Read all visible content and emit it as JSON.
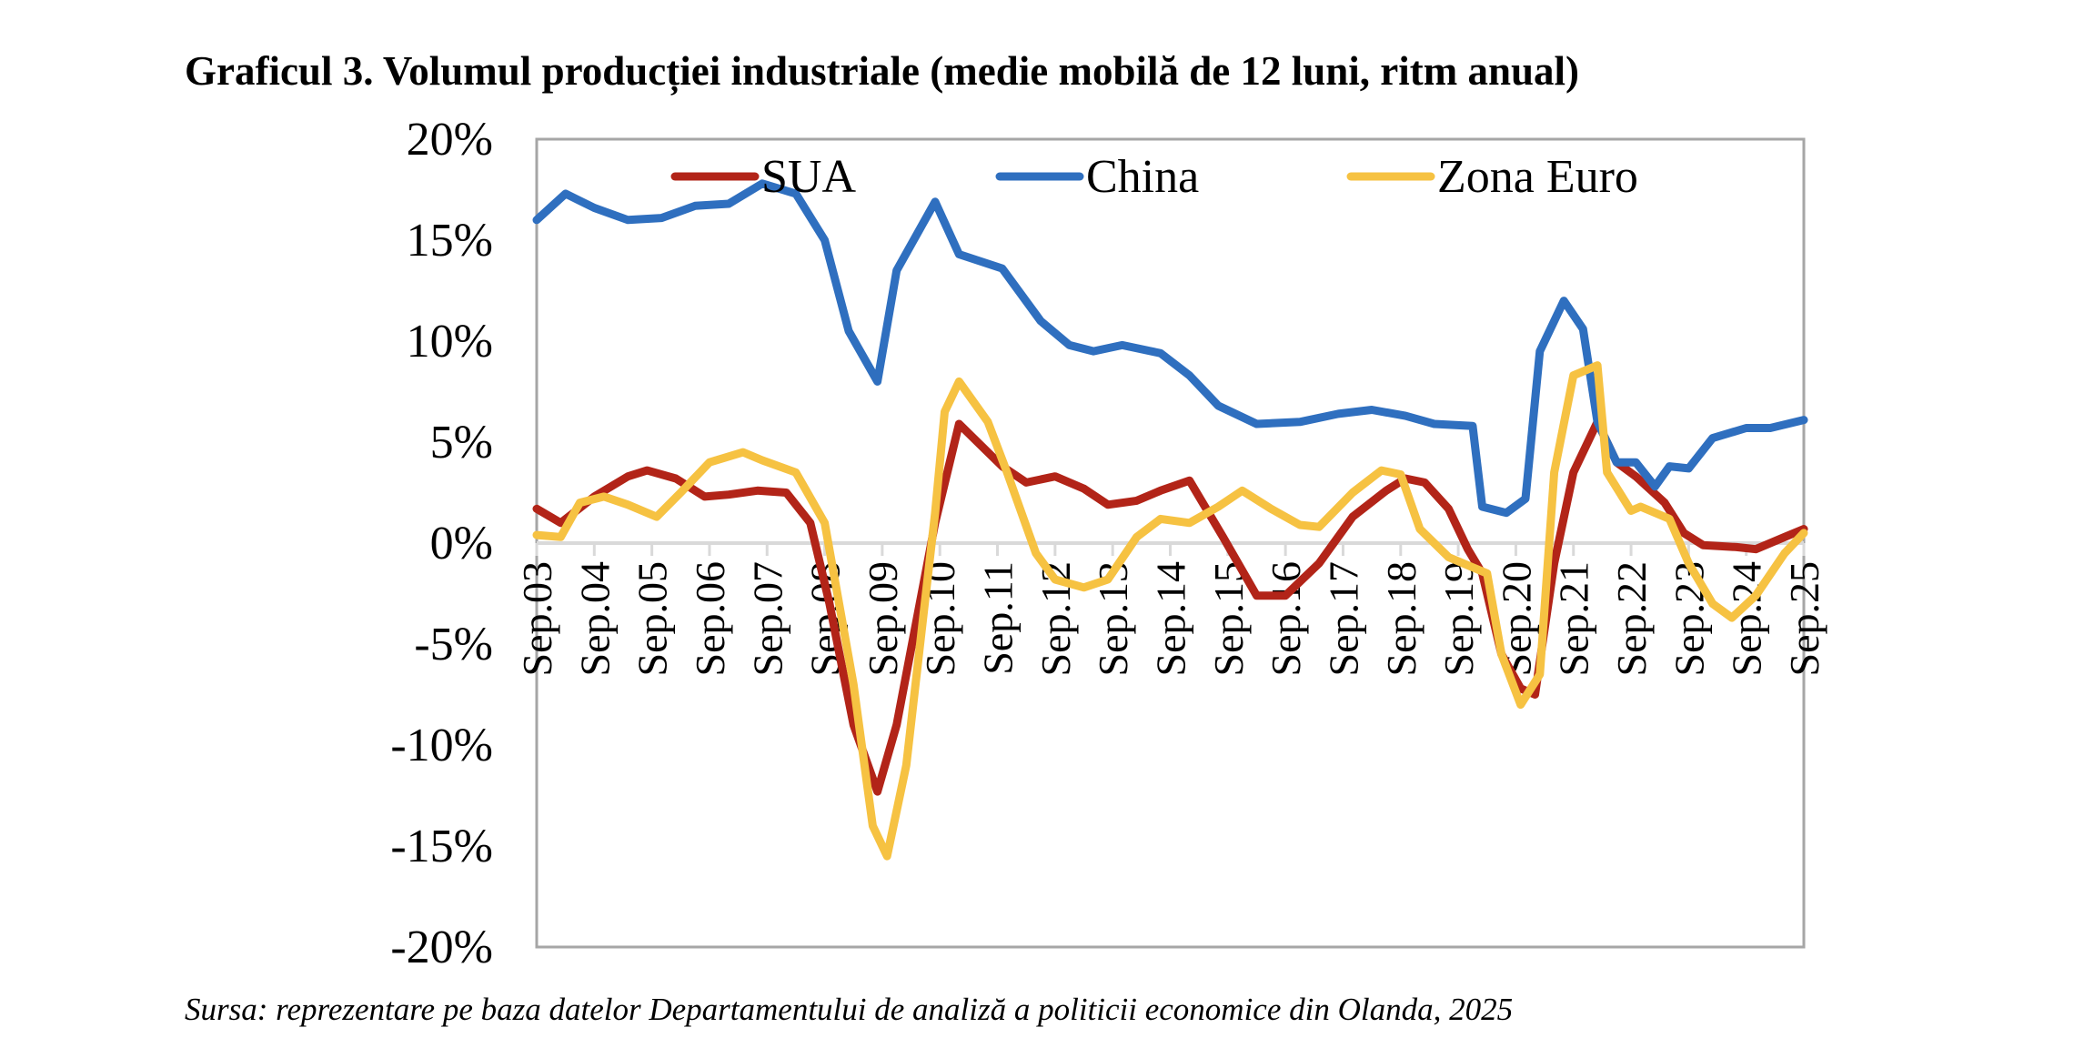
{
  "chart_data": {
    "type": "line",
    "title": "Graficul 3. Volumul producției industriale (medie mobilă de 12 luni, ritm anual)",
    "source": "Sursa: reprezentare pe baza datelor Departamentului de analiză a politicii economice din Olanda, 2025",
    "xlabel": "",
    "ylabel": "",
    "ylim": [
      -20,
      20
    ],
    "yticks": [
      20,
      15,
      10,
      5,
      0,
      -5,
      -10,
      -15,
      -20
    ],
    "ytick_labels": [
      "20%",
      "15%",
      "10%",
      "5%",
      "0%",
      "-5%",
      "-10%",
      "-15%",
      "-20%"
    ],
    "xlim": [
      "2003-09",
      "2025-09"
    ],
    "xticks": [
      "2003-09",
      "2004-09",
      "2005-09",
      "2006-09",
      "2007-09",
      "2008-09",
      "2009-09",
      "2010-09",
      "2011-09",
      "2012-09",
      "2013-09",
      "2014-09",
      "2015-09",
      "2016-09",
      "2017-09",
      "2018-09",
      "2019-09",
      "2020-09",
      "2021-09",
      "2022-09",
      "2023-09",
      "2024-09",
      "2025-09"
    ],
    "xtick_labels": [
      "Sep.03",
      "Sep.04",
      "Sep.05",
      "Sep.06",
      "Sep.07",
      "Sep.08",
      "Sep.09",
      "Sep.10",
      "Sep.11",
      "Sep.12",
      "Sep.13",
      "Sep.14",
      "Sep.15",
      "Sep.16",
      "Sep.17",
      "Sep.18",
      "Sep.19",
      "Sep.20",
      "Sep.21",
      "Sep.22",
      "Sep.23",
      "Sep.24",
      "Sep.25"
    ],
    "grid": false,
    "legend_placement": "top",
    "series": [
      {
        "name": "SUA",
        "color": "#b22418",
        "x": [
          "2003-09",
          "2004-02",
          "2004-09",
          "2005-04",
          "2005-08",
          "2006-02",
          "2006-08",
          "2007-01",
          "2007-07",
          "2008-01",
          "2008-06",
          "2008-10",
          "2009-03",
          "2009-08",
          "2009-12",
          "2010-08",
          "2011-01",
          "2011-10",
          "2012-03",
          "2012-09",
          "2013-03",
          "2013-08",
          "2014-02",
          "2014-07",
          "2015-01",
          "2015-08",
          "2016-03",
          "2016-09",
          "2017-04",
          "2017-11",
          "2018-06",
          "2018-10",
          "2019-02",
          "2019-07",
          "2019-11",
          "2020-02",
          "2020-06",
          "2020-10",
          "2021-01",
          "2021-05",
          "2021-09",
          "2022-02",
          "2022-06",
          "2022-10",
          "2023-04",
          "2023-08",
          "2023-12",
          "2024-07",
          "2024-11",
          "2025-05",
          "2025-09"
        ],
        "values": [
          1.7,
          1.0,
          2.3,
          3.3,
          3.6,
          3.2,
          2.3,
          2.4,
          2.6,
          2.5,
          1.0,
          -3.0,
          -9.0,
          -12.3,
          -9.0,
          1.0,
          5.9,
          3.8,
          3.0,
          3.3,
          2.7,
          1.9,
          2.1,
          2.6,
          3.1,
          0.3,
          -2.6,
          -2.6,
          -1.0,
          1.3,
          2.6,
          3.2,
          3.0,
          1.7,
          -0.3,
          -1.5,
          -5.5,
          -7.2,
          -7.5,
          -1.0,
          3.5,
          6.0,
          4.0,
          3.3,
          2.0,
          0.5,
          -0.1,
          -0.2,
          -0.3,
          0.3,
          0.7
        ]
      },
      {
        "name": "China",
        "color": "#2f6fbf",
        "x": [
          "2003-09",
          "2004-03",
          "2004-09",
          "2005-04",
          "2005-11",
          "2006-06",
          "2007-01",
          "2007-08",
          "2008-03",
          "2008-09",
          "2009-02",
          "2009-08",
          "2009-12",
          "2010-08",
          "2011-01",
          "2011-10",
          "2012-06",
          "2012-12",
          "2013-05",
          "2013-11",
          "2014-07",
          "2015-01",
          "2015-07",
          "2016-03",
          "2016-12",
          "2017-08",
          "2018-03",
          "2018-10",
          "2019-04",
          "2019-12",
          "2020-02",
          "2020-07",
          "2020-11",
          "2021-02",
          "2021-07",
          "2021-11",
          "2022-02",
          "2022-06",
          "2022-10",
          "2023-02",
          "2023-05",
          "2023-09",
          "2024-02",
          "2024-09",
          "2025-02",
          "2025-09"
        ],
        "values": [
          16.0,
          17.3,
          16.6,
          16.0,
          16.1,
          16.7,
          16.8,
          17.8,
          17.3,
          15.0,
          10.5,
          8.0,
          13.5,
          16.9,
          14.3,
          13.6,
          11.0,
          9.8,
          9.5,
          9.8,
          9.4,
          8.3,
          6.8,
          5.9,
          6.0,
          6.4,
          6.6,
          6.3,
          5.9,
          5.8,
          1.8,
          1.5,
          2.2,
          9.5,
          12.0,
          10.6,
          6.0,
          4.0,
          4.0,
          2.8,
          3.8,
          3.7,
          5.2,
          5.7,
          5.7,
          6.1
        ]
      },
      {
        "name": "Zona Euro",
        "color": "#f6c242",
        "x": [
          "2003-09",
          "2004-02",
          "2004-06",
          "2004-11",
          "2005-04",
          "2005-10",
          "2006-03",
          "2006-09",
          "2007-04",
          "2007-08",
          "2008-03",
          "2008-09",
          "2009-03",
          "2009-07",
          "2009-10",
          "2010-02",
          "2010-08",
          "2010-10",
          "2011-01",
          "2011-07",
          "2011-11",
          "2012-05",
          "2012-09",
          "2013-03",
          "2013-08",
          "2014-02",
          "2014-07",
          "2015-01",
          "2015-07",
          "2015-12",
          "2016-06",
          "2016-12",
          "2017-04",
          "2017-11",
          "2018-05",
          "2018-09",
          "2019-01",
          "2019-07",
          "2019-12",
          "2020-03",
          "2020-06",
          "2020-10",
          "2021-02",
          "2021-05",
          "2021-09",
          "2022-02",
          "2022-04",
          "2022-09",
          "2022-11",
          "2023-05",
          "2023-09",
          "2024-02",
          "2024-06",
          "2024-11",
          "2025-05",
          "2025-09"
        ],
        "values": [
          0.4,
          0.3,
          2.0,
          2.3,
          1.9,
          1.3,
          2.5,
          4.0,
          4.5,
          4.1,
          3.5,
          1.0,
          -7.0,
          -14.0,
          -15.5,
          -11.0,
          1.5,
          6.5,
          8.0,
          6.0,
          3.5,
          -0.5,
          -1.8,
          -2.2,
          -1.8,
          0.3,
          1.2,
          1.0,
          1.8,
          2.6,
          1.7,
          0.9,
          0.8,
          2.5,
          3.6,
          3.4,
          0.7,
          -0.7,
          -1.2,
          -1.5,
          -5.5,
          -8.0,
          -6.5,
          3.5,
          8.3,
          8.8,
          3.5,
          1.6,
          1.8,
          1.2,
          -1.0,
          -3.0,
          -3.7,
          -2.6,
          -0.5,
          0.5
        ]
      }
    ]
  }
}
